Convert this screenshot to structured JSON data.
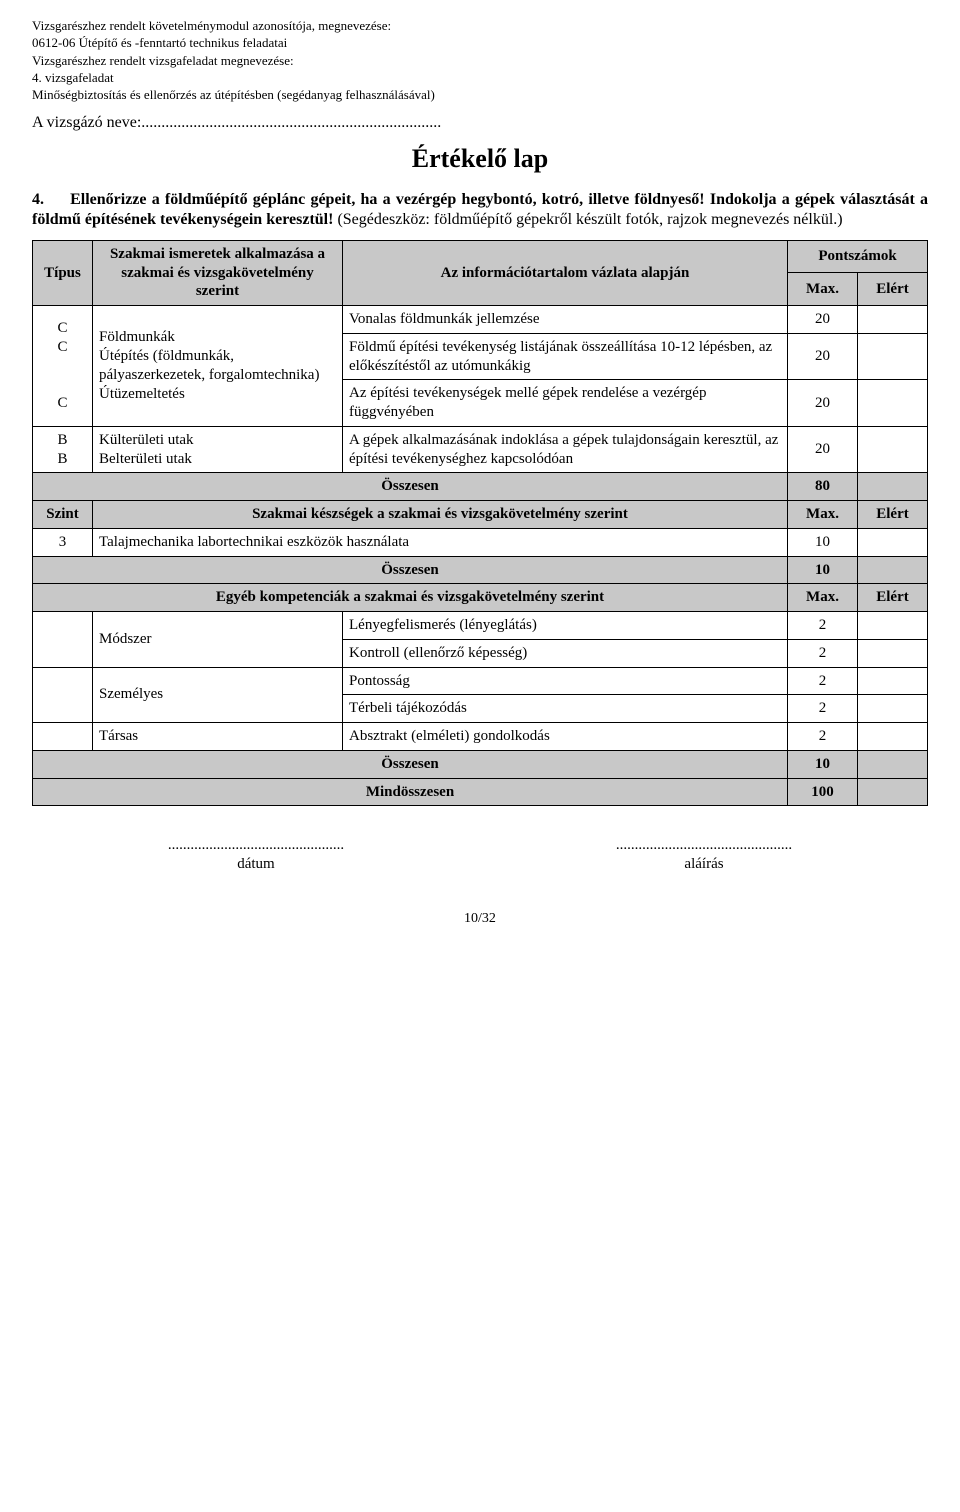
{
  "header": {
    "l1": "Vizsgarészhez rendelt követelménymodul azonosítója, megnevezése:",
    "l2": "0612-06 Útépítő és -fenntartó technikus feladatai",
    "l3": "Vizsgarészhez rendelt vizsgafeladat megnevezése:",
    "l4": "4. vizsgafeladat",
    "l5": "Minőségbiztosítás és ellenőrzés az útépítésben (segédanyag felhasználásával)"
  },
  "name_line": "A vizsgázó neve:...........................................................................",
  "title": "Értékelő lap",
  "task": {
    "num": "4.",
    "bold": "Ellenőrizze a földműépítő géplánc gépeit, ha a vezérgép hegybontó, kotró, illetve földnyeső! Indokolja a gépek választását a földmű építésének tevékenységein keresztül!",
    "sub": "(Segédeszköz: földműépítő gépekről készült fotók, rajzok megnevezés nélkül.)"
  },
  "tbl": {
    "h_type": "Típus",
    "h_ism": "Szakmai ismeretek alkalmazása a szakmai és vizsgakövetelmény szerint",
    "h_info": "Az információtartalom vázlata alapján",
    "h_pont": "Pontszámok",
    "h_max": "Max.",
    "h_elert": "Elért",
    "group1_types": [
      "C",
      "C",
      "",
      "",
      "C"
    ],
    "group1_ism": "Földmunkák\nÚtépítés (földmunkák, pályaszerkezetek, forgalomtechnika)\nÚtüzemeltetés",
    "r1_info": "Vonalas földmunkák jellemzése",
    "r1_max": "20",
    "r2_info": "Földmű építési tevékenység listájának összeállítása 10-12 lépésben, az előkészítéstől az utómunkákig",
    "r2_max": "20",
    "r3_info": "Az építési tevékenységek mellé gépek rendelése a vezérgép függvényében",
    "r3_max": "20",
    "group2_types": [
      "B",
      "B"
    ],
    "group2_ism": "Külterületi utak\nBelterületi utak",
    "r4_info": "A gépek alkalmazásának indoklása a gépek tulajdonságain keresztül, az építési tevékenységhez kapcsolódóan",
    "r4_max": "20",
    "sum1_label": "Összesen",
    "sum1_val": "80",
    "h_szint": "Szint",
    "h_skill": "Szakmai készségek a szakmai és vizsgakövetelmény szerint",
    "skill_lvl": "3",
    "skill_txt": "Talajmechanika labortechnikai eszközök használata",
    "skill_max": "10",
    "sum2_label": "Összesen",
    "sum2_val": "10",
    "h_egyeb": "Egyéb kompetenciák a szakmai és vizsgakövetelmény szerint",
    "comp1_cat": "Módszer",
    "comp1a": "Lényegfelismerés (lényeglátás)",
    "comp1a_v": "2",
    "comp1b": "Kontroll (ellenőrző képesség)",
    "comp1b_v": "2",
    "comp2_cat": "Személyes",
    "comp2a": "Pontosság",
    "comp2a_v": "2",
    "comp2b": "Térbeli tájékozódás",
    "comp2b_v": "2",
    "comp3_cat": "Társas",
    "comp3a": "Absztrakt (elméleti) gondolkodás",
    "comp3a_v": "2",
    "sum3_label": "Összesen",
    "sum3_val": "10",
    "total_label": "Mindösszesen",
    "total_val": "100"
  },
  "sig": {
    "dots": "...............................................",
    "date": "dátum",
    "sign": "aláírás"
  },
  "pagenum": "10/32"
}
